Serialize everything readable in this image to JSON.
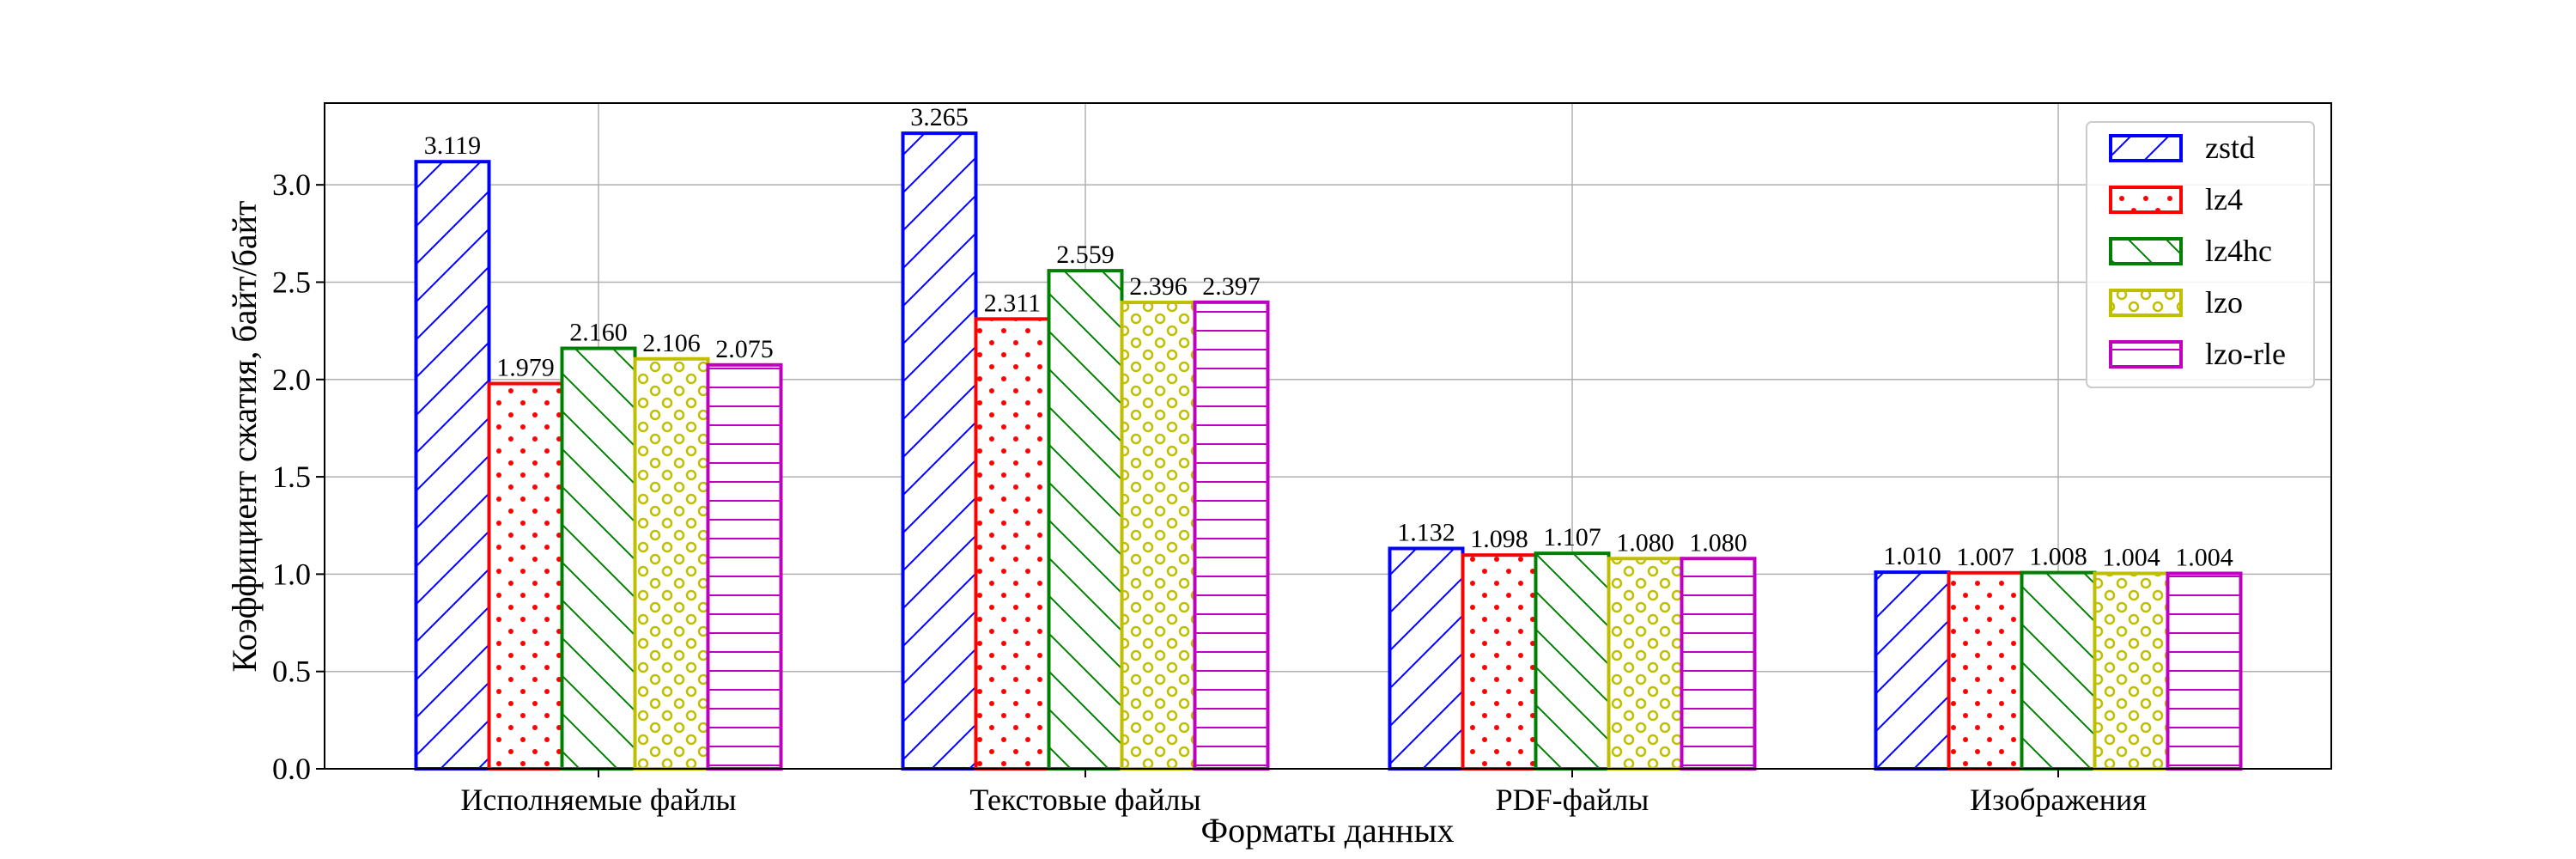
{
  "chart_data": {
    "type": "bar",
    "title": "",
    "xlabel": "Форматы данных",
    "ylabel": "Коэффициент сжатия, байт/байт",
    "ylim": [
      0,
      3.42
    ],
    "yticks": [
      "0.0",
      "0.5",
      "1.0",
      "1.5",
      "2.0",
      "2.5",
      "3.0"
    ],
    "grid": true,
    "legend_position": "top-right",
    "categories": [
      "Исполняемые файлы",
      "Текстовые файлы",
      "PDF-файлы",
      "Изображения"
    ],
    "series": [
      {
        "name": "zstd",
        "color": "#0000ff",
        "hatch": "diagonal-forward",
        "values": [
          3.119,
          3.265,
          1.132,
          1.01
        ],
        "labels": [
          "3.119",
          "3.265",
          "1.132",
          "1.010"
        ]
      },
      {
        "name": "lz4",
        "color": "#ff0000",
        "hatch": "dots",
        "values": [
          1.979,
          2.311,
          1.098,
          1.007
        ],
        "labels": [
          "1.979",
          "2.311",
          "1.098",
          "1.007"
        ]
      },
      {
        "name": "lz4hc",
        "color": "#008000",
        "hatch": "diagonal-back",
        "values": [
          2.16,
          2.559,
          1.107,
          1.008
        ],
        "labels": [
          "2.160",
          "2.559",
          "1.107",
          "1.008"
        ]
      },
      {
        "name": "lzo",
        "color": "#bfbf00",
        "hatch": "circles",
        "values": [
          2.106,
          2.396,
          1.08,
          1.004
        ],
        "labels": [
          "2.106",
          "2.396",
          "1.080",
          "1.004"
        ]
      },
      {
        "name": "lzo-rle",
        "color": "#bf00bf",
        "hatch": "horizontal",
        "values": [
          2.075,
          2.397,
          1.08,
          1.004
        ],
        "labels": [
          "2.075",
          "2.397",
          "1.080",
          "1.004"
        ]
      }
    ]
  }
}
